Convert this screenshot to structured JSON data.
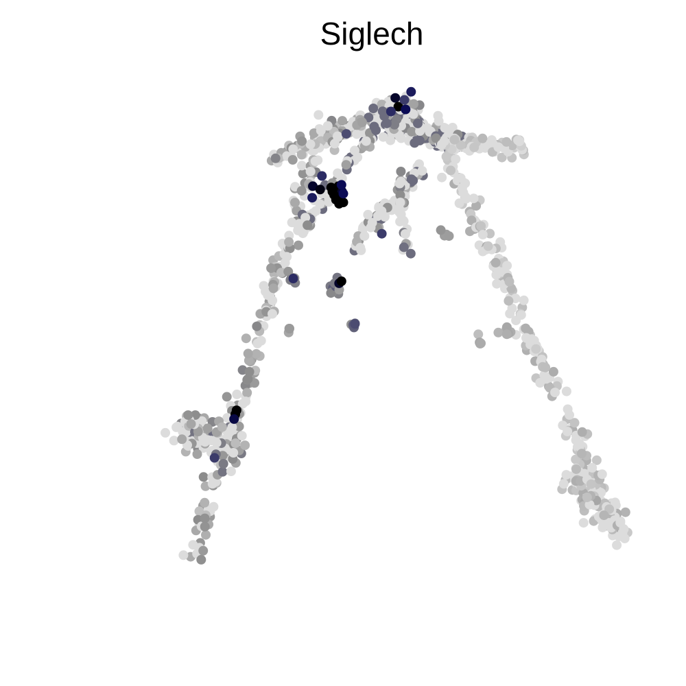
{
  "chart_data": {
    "type": "scatter",
    "title": "Siglech",
    "xlabel": "",
    "ylabel": "",
    "grid": false,
    "axes_visible": false,
    "legend": "none",
    "color_scale": {
      "low": "#dcdcdc",
      "mid": "#8c8c8c",
      "high": "#0b0b55",
      "max": "#000000"
    },
    "xlim": [
      0,
      100
    ],
    "ylim": [
      0,
      100
    ],
    "trajectory_segments": [
      {
        "name": "left-arm",
        "x0": 20.0,
        "y0": 18.5,
        "x1": 42.0,
        "y1": 83.0,
        "n": 180,
        "spread": 1.2,
        "level": 0.35
      },
      {
        "name": "left-lower-blob",
        "x0": 18.5,
        "y0": 38.0,
        "x1": 27.5,
        "y1": 35.0,
        "n": 120,
        "spread": 2.2,
        "level": 0.4
      },
      {
        "name": "upper-arc",
        "x0": 33.0,
        "y0": 77.0,
        "x1": 56.5,
        "y1": 86.0,
        "n": 140,
        "spread": 1.3,
        "level": 0.35
      },
      {
        "name": "top-cluster",
        "x0": 51.0,
        "y0": 83.5,
        "x1": 63.0,
        "y1": 80.5,
        "n": 170,
        "spread": 1.8,
        "level": 0.6
      },
      {
        "name": "inner-arm",
        "x0": 38.0,
        "y0": 67.0,
        "x1": 50.0,
        "y1": 82.0,
        "n": 70,
        "spread": 0.9,
        "level": 0.55
      },
      {
        "name": "right-arm-upper",
        "x0": 62.0,
        "y0": 80.0,
        "x1": 74.0,
        "y1": 79.0,
        "n": 60,
        "spread": 1.4,
        "level": 0.15
      },
      {
        "name": "right-arm",
        "x0": 62.0,
        "y0": 78.0,
        "x1": 90.5,
        "y1": 22.0,
        "n": 200,
        "spread": 1.3,
        "level": 0.2
      },
      {
        "name": "right-lower-blob",
        "x0": 82.0,
        "y0": 31.0,
        "x1": 90.0,
        "y1": 23.0,
        "n": 90,
        "spread": 1.6,
        "level": 0.25
      },
      {
        "name": "middle-branch",
        "x0": 47.0,
        "y0": 65.0,
        "x1": 58.0,
        "y1": 77.0,
        "n": 70,
        "spread": 0.9,
        "level": 0.5
      },
      {
        "name": "middle-branch-2",
        "x0": 54.0,
        "y0": 76.0,
        "x1": 55.5,
        "y1": 63.0,
        "n": 30,
        "spread": 0.6,
        "level": 0.5
      }
    ],
    "small_clusters": [
      {
        "x": 36.8,
        "y": 60.3,
        "n": 8,
        "spread": 0.5,
        "level": 0.55
      },
      {
        "x": 43.8,
        "y": 58.5,
        "n": 10,
        "spread": 0.6,
        "level": 0.6
      },
      {
        "x": 46.8,
        "y": 53.3,
        "n": 5,
        "spread": 0.4,
        "level": 0.7
      },
      {
        "x": 35.8,
        "y": 52.5,
        "n": 3,
        "spread": 0.3,
        "level": 0.4
      },
      {
        "x": 67.3,
        "y": 50.8,
        "n": 4,
        "spread": 0.4,
        "level": 0.3
      },
      {
        "x": 72.0,
        "y": 52.0,
        "n": 8,
        "spread": 0.6,
        "level": 0.35
      },
      {
        "x": 61.8,
        "y": 66.5,
        "n": 4,
        "spread": 0.4,
        "level": 0.45
      },
      {
        "x": 47.8,
        "y": 83.0,
        "n": 6,
        "spread": 0.5,
        "level": 0.35
      }
    ],
    "high_expression_points": [
      {
        "x": 53.5,
        "y": 86.6,
        "level": 0.95
      },
      {
        "x": 54.0,
        "y": 85.3,
        "level": 1.0
      },
      {
        "x": 55.2,
        "y": 84.9,
        "level": 0.9
      },
      {
        "x": 56.1,
        "y": 87.5,
        "level": 0.85
      },
      {
        "x": 52.8,
        "y": 84.6,
        "level": 0.8
      },
      {
        "x": 55.0,
        "y": 86.3,
        "level": 0.75
      },
      {
        "x": 40.0,
        "y": 73.6,
        "level": 0.95
      },
      {
        "x": 41.2,
        "y": 73.1,
        "level": 0.98
      },
      {
        "x": 39.9,
        "y": 71.9,
        "level": 0.85
      },
      {
        "x": 41.5,
        "y": 75.1,
        "level": 0.8
      },
      {
        "x": 43.5,
        "y": 72.3,
        "level": 1.0
      },
      {
        "x": 44.0,
        "y": 73.0,
        "level": 1.0
      },
      {
        "x": 43.2,
        "y": 72.8,
        "level": 1.0
      },
      {
        "x": 44.5,
        "y": 72.2,
        "level": 1.0
      },
      {
        "x": 43.8,
        "y": 71.6,
        "level": 1.0
      },
      {
        "x": 44.2,
        "y": 73.6,
        "level": 1.0
      },
      {
        "x": 43.0,
        "y": 73.4,
        "level": 1.0
      },
      {
        "x": 44.8,
        "y": 72.8,
        "level": 0.95
      },
      {
        "x": 43.9,
        "y": 72.0,
        "level": 1.0
      },
      {
        "x": 45.0,
        "y": 71.2,
        "level": 1.0
      },
      {
        "x": 44.3,
        "y": 71.0,
        "level": 1.0
      },
      {
        "x": 44.7,
        "y": 73.8,
        "level": 0.9
      },
      {
        "x": 45.0,
        "y": 72.5,
        "level": 0.9
      },
      {
        "x": 51.3,
        "y": 66.6,
        "level": 0.75
      },
      {
        "x": 36.8,
        "y": 60.0,
        "level": 0.8
      },
      {
        "x": 44.3,
        "y": 59.3,
        "level": 0.95
      },
      {
        "x": 44.7,
        "y": 59.6,
        "level": 1.0
      },
      {
        "x": 46.9,
        "y": 53.3,
        "level": 0.7
      },
      {
        "x": 45.5,
        "y": 81.3,
        "level": 0.7
      },
      {
        "x": 27.5,
        "y": 40.6,
        "level": 1.0
      },
      {
        "x": 27.3,
        "y": 40.0,
        "level": 1.0
      },
      {
        "x": 27.1,
        "y": 39.3,
        "level": 0.92
      },
      {
        "x": 23.9,
        "y": 33.6,
        "level": 0.75
      }
    ]
  }
}
